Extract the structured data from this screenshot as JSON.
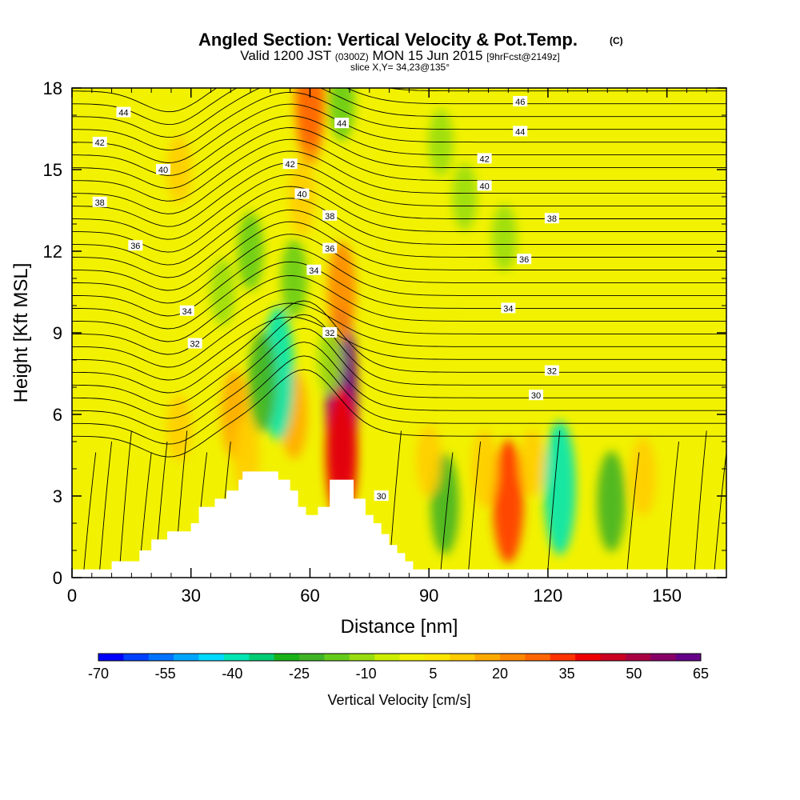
{
  "title": {
    "main": "Angled Section: Vertical Velocity & Pot.Temp.",
    "main_units": "(C)",
    "valid": "Valid 1200 JST",
    "valid_z": "(0300Z)",
    "valid_date": "MON 15 Jun 2015",
    "forecast": "[9hrFcst@2149z]",
    "slice": "slice X,Y= 34,23@135°"
  },
  "chart_data": {
    "type": "heatmap",
    "xlabel": "Distance [nm]",
    "ylabel": "Height [Kft MSL]",
    "xlim": [
      0,
      165
    ],
    "ylim": [
      0,
      18
    ],
    "x_ticks": [
      0,
      30,
      60,
      90,
      120,
      150
    ],
    "y_ticks": [
      0,
      3,
      6,
      9,
      12,
      15,
      18
    ],
    "colorbar": {
      "label": "Vertical Velocity [cm/s]",
      "min": -70,
      "max": 65,
      "tick_labels": [
        "-70",
        "-55",
        "-40",
        "-25",
        "-10",
        "5",
        "20",
        "35",
        "50",
        "65"
      ],
      "colors": [
        "#0000ff",
        "#0040ff",
        "#0073ff",
        "#00a6ff",
        "#00d9ff",
        "#00e6b3",
        "#00cc73",
        "#19b319",
        "#40b326",
        "#66cc1a",
        "#99dd10",
        "#ccee00",
        "#f2f200",
        "#ffe600",
        "#ffcc00",
        "#ffaa00",
        "#ff8800",
        "#ff6600",
        "#ff3300",
        "#ee0000",
        "#cc0022",
        "#aa0044",
        "#880066",
        "#660088"
      ]
    },
    "terrain": [
      [
        0,
        0.3
      ],
      [
        10,
        0.3
      ],
      [
        10,
        0.6
      ],
      [
        17,
        0.6
      ],
      [
        17,
        1
      ],
      [
        20,
        1
      ],
      [
        20,
        1.4
      ],
      [
        24,
        1.4
      ],
      [
        24,
        1.7
      ],
      [
        30,
        1.7
      ],
      [
        30,
        2
      ],
      [
        32,
        2
      ],
      [
        32,
        2.6
      ],
      [
        36,
        2.6
      ],
      [
        36,
        2.9
      ],
      [
        39,
        2.9
      ],
      [
        39,
        3.2
      ],
      [
        42,
        3.2
      ],
      [
        42,
        3.6
      ],
      [
        43,
        3.6
      ],
      [
        43,
        3.9
      ],
      [
        52,
        3.9
      ],
      [
        52,
        3.6
      ],
      [
        55,
        3.6
      ],
      [
        55,
        3.2
      ],
      [
        57,
        3.2
      ],
      [
        57,
        2.6
      ],
      [
        59,
        2.6
      ],
      [
        59,
        2.3
      ],
      [
        62,
        2.3
      ],
      [
        62,
        2.6
      ],
      [
        65,
        2.6
      ],
      [
        65,
        3.6
      ],
      [
        71,
        3.6
      ],
      [
        71,
        2.9
      ],
      [
        74,
        2.9
      ],
      [
        74,
        2.3
      ],
      [
        76,
        2.3
      ],
      [
        76,
        2
      ],
      [
        78,
        2
      ],
      [
        78,
        1.6
      ],
      [
        80,
        1.6
      ],
      [
        80,
        1.2
      ],
      [
        82,
        1.2
      ],
      [
        82,
        0.9
      ],
      [
        84,
        0.9
      ],
      [
        84,
        0.6
      ],
      [
        86,
        0.6
      ],
      [
        86,
        0.3
      ],
      [
        165,
        0.3
      ]
    ],
    "series": [
      {
        "name": "Vertical Velocity",
        "units": "cm/s",
        "cells": [
          {
            "x": 68,
            "y": 6.5,
            "value": 65
          },
          {
            "x": 68,
            "y": 4.5,
            "value": 40
          },
          {
            "x": 68,
            "y": 10.5,
            "value": 25
          },
          {
            "x": 60,
            "y": 17,
            "value": 25
          },
          {
            "x": 58,
            "y": 14,
            "value": 15
          },
          {
            "x": 41,
            "y": 6,
            "value": 20
          },
          {
            "x": 44,
            "y": 4.5,
            "value": 15
          },
          {
            "x": 56,
            "y": 6,
            "value": 20
          },
          {
            "x": 65,
            "y": 8,
            "value": -10
          },
          {
            "x": 52,
            "y": 7.5,
            "value": -40
          },
          {
            "x": 48,
            "y": 7.2,
            "value": -25
          },
          {
            "x": 56,
            "y": 11,
            "value": -15
          },
          {
            "x": 45,
            "y": 12,
            "value": -15
          },
          {
            "x": 38,
            "y": 10.5,
            "value": -10
          },
          {
            "x": 68,
            "y": 17.5,
            "value": -15
          },
          {
            "x": 94,
            "y": 2.7,
            "value": -25
          },
          {
            "x": 110,
            "y": 2.8,
            "value": 35
          },
          {
            "x": 104,
            "y": 4,
            "value": 15
          },
          {
            "x": 123,
            "y": 3.3,
            "value": -40
          },
          {
            "x": 136,
            "y": 2.8,
            "value": -25
          },
          {
            "x": 144,
            "y": 3.7,
            "value": 15
          },
          {
            "x": 90,
            "y": 4.3,
            "value": 12
          },
          {
            "x": 116,
            "y": 4.2,
            "value": 10
          },
          {
            "x": 93,
            "y": 16,
            "value": -10
          },
          {
            "x": 99,
            "y": 14,
            "value": -10
          },
          {
            "x": 109,
            "y": 12.5,
            "value": -10
          },
          {
            "x": 27,
            "y": 5.5,
            "value": 10
          },
          {
            "x": 27,
            "y": 15,
            "value": 10
          },
          {
            "x": 60,
            "y": 17.8,
            "value": 30
          }
        ]
      },
      {
        "name": "Pot.Temp.",
        "units": "C",
        "contour_labels": [
          {
            "x": 13,
            "y": 17.1,
            "text": "44"
          },
          {
            "x": 7,
            "y": 16.0,
            "text": "42"
          },
          {
            "x": 23,
            "y": 15.0,
            "text": "40"
          },
          {
            "x": 7,
            "y": 13.8,
            "text": "38"
          },
          {
            "x": 16,
            "y": 12.2,
            "text": "36"
          },
          {
            "x": 29,
            "y": 9.8,
            "text": "34"
          },
          {
            "x": 31,
            "y": 8.6,
            "text": "32"
          },
          {
            "x": 55,
            "y": 15.2,
            "text": "42"
          },
          {
            "x": 58,
            "y": 14.1,
            "text": "40"
          },
          {
            "x": 65,
            "y": 13.3,
            "text": "38"
          },
          {
            "x": 65,
            "y": 12.1,
            "text": "36"
          },
          {
            "x": 61,
            "y": 11.3,
            "text": "34"
          },
          {
            "x": 65,
            "y": 9.0,
            "text": "32"
          },
          {
            "x": 68,
            "y": 16.7,
            "text": "44"
          },
          {
            "x": 113,
            "y": 17.5,
            "text": "46"
          },
          {
            "x": 113,
            "y": 16.4,
            "text": "44"
          },
          {
            "x": 104,
            "y": 15.4,
            "text": "42"
          },
          {
            "x": 104,
            "y": 14.4,
            "text": "40"
          },
          {
            "x": 121,
            "y": 13.2,
            "text": "38"
          },
          {
            "x": 114,
            "y": 11.7,
            "text": "36"
          },
          {
            "x": 110,
            "y": 9.9,
            "text": "34"
          },
          {
            "x": 121,
            "y": 7.6,
            "text": "32"
          },
          {
            "x": 117,
            "y": 6.7,
            "text": "30"
          },
          {
            "x": 78,
            "y": 3.0,
            "text": "30"
          }
        ]
      }
    ]
  }
}
